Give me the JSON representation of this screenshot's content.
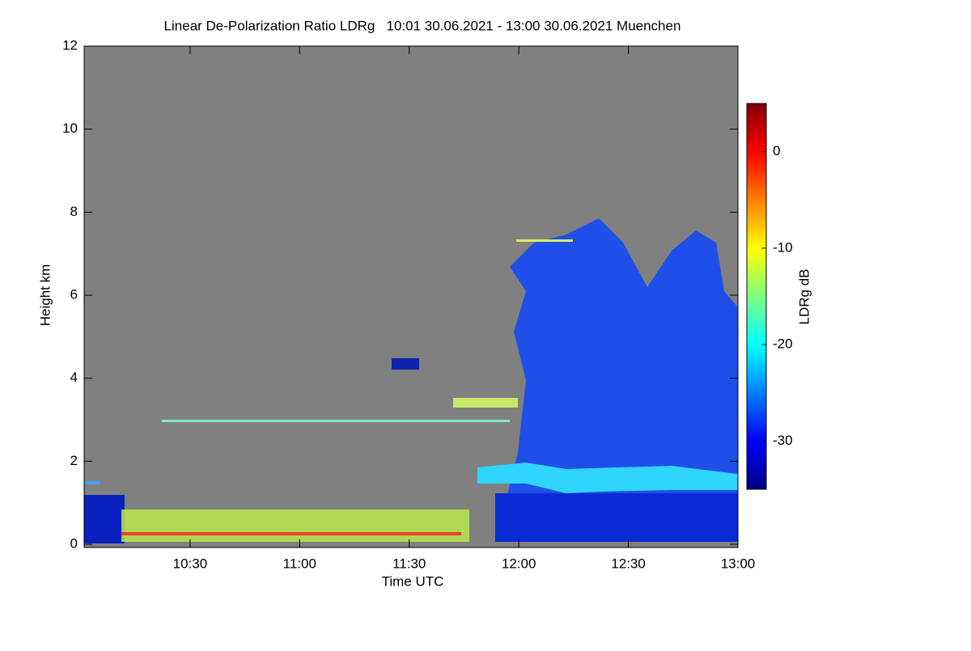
{
  "chart_data": {
    "type": "heatmap",
    "title": "Linear De-Polarization Ratio LDRg   10:01 30.06.2021 - 13:00 30.06.2021 Muenchen",
    "xlabel": "Time UTC",
    "ylabel": "Height km",
    "colorbar_label": "LDRg dB",
    "xlim": [
      "10:01",
      "13:00"
    ],
    "xticks": [
      "10:30",
      "11:00",
      "11:30",
      "12:00",
      "12:30",
      "13:00"
    ],
    "ylim": [
      0,
      12
    ],
    "yticks": [
      0,
      2,
      4,
      6,
      8,
      10,
      12
    ],
    "zlim": [
      -35,
      5
    ],
    "zticks": [
      0,
      -10,
      -20,
      -30
    ],
    "colormap": [
      "#00007f",
      "#0000ff",
      "#007fff",
      "#00ffff",
      "#7fff7f",
      "#ffff00",
      "#ff7f00",
      "#ff0000",
      "#7f0000"
    ]
  }
}
